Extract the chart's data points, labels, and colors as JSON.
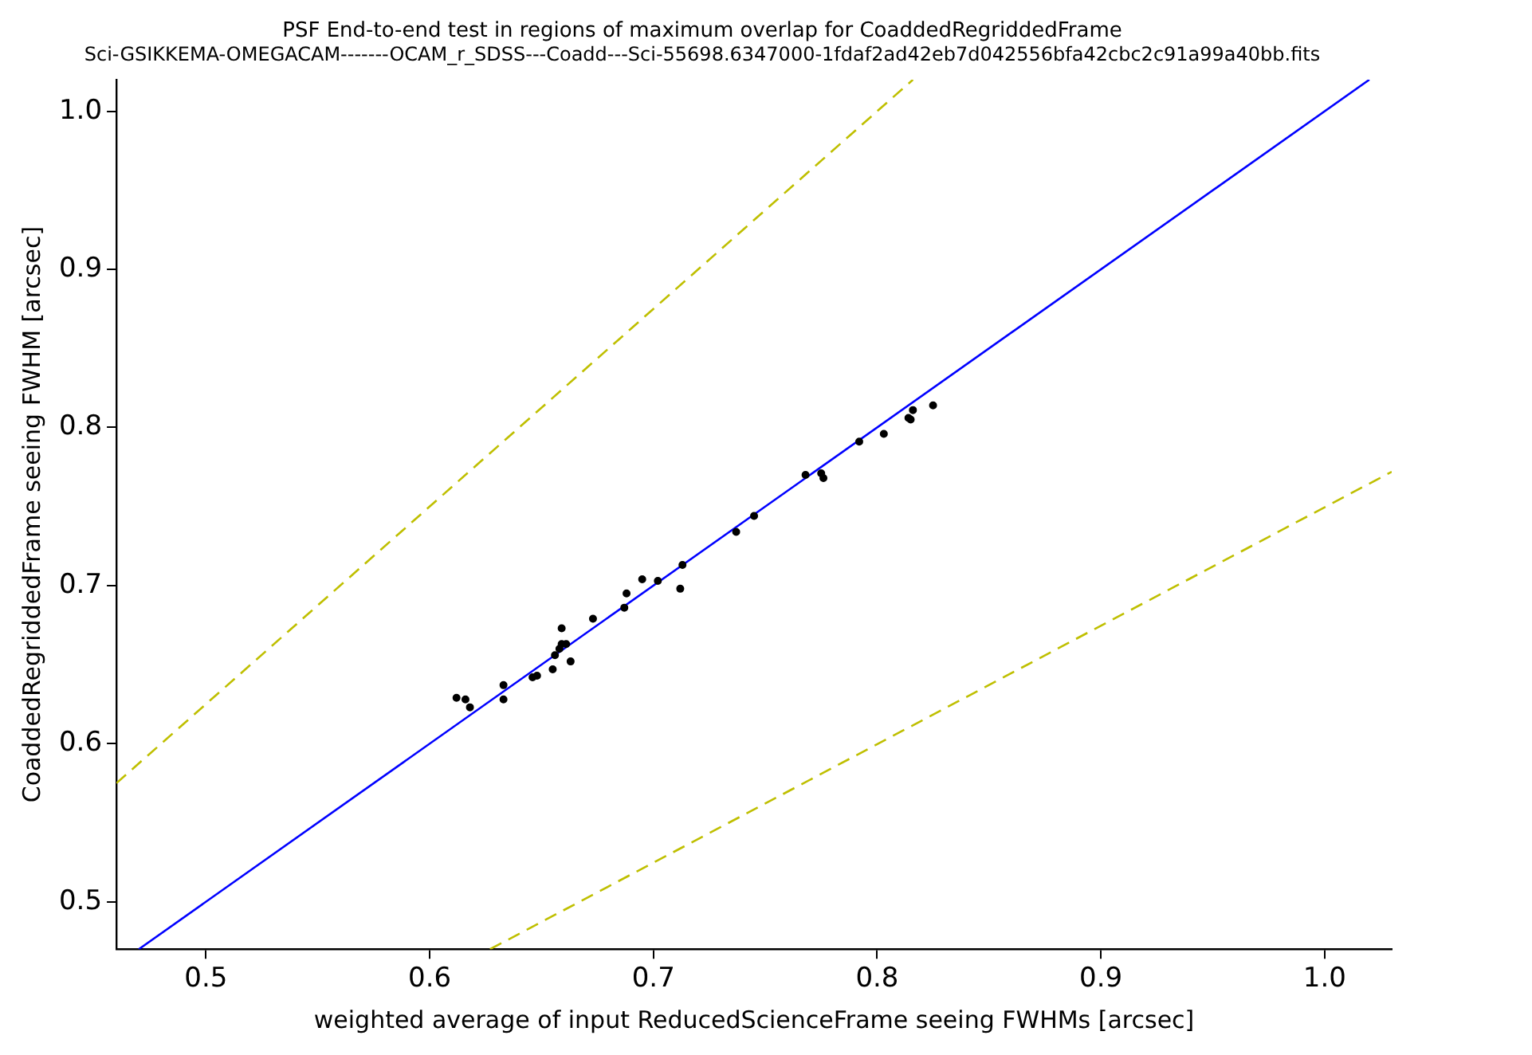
{
  "chart_data": {
    "type": "scatter",
    "title": "PSF End-to-end test in regions of maximum overlap for CoaddedRegriddedFrame",
    "subtitle": "Sci-GSIKKEMA-OMEGACAM-------OCAM_r_SDSS---Coadd---Sci-55698.6347000-1fdaf2ad42eb7d042556bfa42cbc2c91a99a40bb.fits",
    "xlabel": "weighted average of input ReducedScienceFrame seeing FWHMs [arcsec]",
    "ylabel": "CoaddedRegriddedFrame seeing FWHM [arcsec]",
    "xlim": [
      0.46,
      1.03
    ],
    "ylim": [
      0.47,
      1.02
    ],
    "xticks": [
      0.5,
      0.6,
      0.7,
      0.8,
      0.9,
      {
        "value": 1,
        "label": "1.0"
      }
    ],
    "yticks": [
      0.5,
      0.6,
      0.7,
      0.8,
      0.9,
      {
        "value": 1,
        "label": "1.0"
      }
    ],
    "grid": false,
    "legend": false,
    "series": [
      {
        "type": "scatter",
        "color": "#000000",
        "marker": "circle",
        "x": [
          0.612,
          0.616,
          0.618,
          0.633,
          0.633,
          0.646,
          0.648,
          0.655,
          0.656,
          0.658,
          0.659,
          0.661,
          0.659,
          0.663,
          0.673,
          0.687,
          0.688,
          0.695,
          0.702,
          0.712,
          0.713,
          0.737,
          0.745,
          0.768,
          0.775,
          0.776,
          0.792,
          0.803,
          0.814,
          0.815,
          0.816,
          0.825
        ],
        "values": [
          0.629,
          0.628,
          0.623,
          0.637,
          0.628,
          0.642,
          0.643,
          0.647,
          0.656,
          0.66,
          0.663,
          0.663,
          0.673,
          0.652,
          0.679,
          0.686,
          0.695,
          0.704,
          0.703,
          0.698,
          0.713,
          0.734,
          0.744,
          0.77,
          0.771,
          0.768,
          0.791,
          0.796,
          0.806,
          0.805,
          0.811,
          0.814
        ]
      },
      {
        "type": "line",
        "color": "#0000ff",
        "line_style": "solid",
        "marker": "none",
        "x": [
          0.47,
          1.02
        ],
        "values": [
          0.47,
          1.02
        ]
      },
      {
        "type": "line",
        "color": "#bfbf00",
        "line_style": "dashed",
        "marker": "none",
        "x": [
          0.46,
          0.816
        ],
        "values": [
          0.575,
          1.02
        ]
      },
      {
        "type": "line",
        "color": "#bfbf00",
        "line_style": "dashed",
        "marker": "none",
        "x": [
          0.627,
          1.03
        ],
        "values": [
          0.47,
          0.772
        ]
      }
    ]
  }
}
